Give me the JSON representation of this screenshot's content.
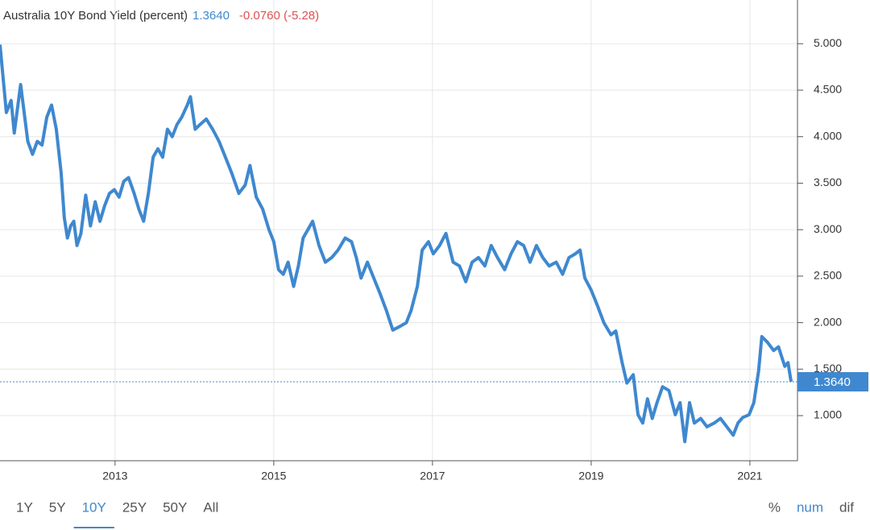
{
  "chart_data": {
    "type": "line",
    "title": "Australia 10Y Bond Yield (percent)",
    "current": {
      "value": 1.364,
      "label": "1.3640"
    },
    "change": "-0.0760 (-5.28)",
    "color": "#3f88cf",
    "x": [
      2011.55,
      2011.63,
      2011.69,
      2011.73,
      2011.81,
      2011.9,
      2011.96,
      2012.02,
      2012.08,
      2012.14,
      2012.2,
      2012.26,
      2012.32,
      2012.36,
      2012.4,
      2012.44,
      2012.48,
      2012.52,
      2012.57,
      2012.63,
      2012.69,
      2012.75,
      2012.81,
      2012.87,
      2012.93,
      2012.99,
      2013.05,
      2013.11,
      2013.17,
      2013.24,
      2013.3,
      2013.36,
      2013.42,
      2013.48,
      2013.54,
      2013.6,
      2013.66,
      2013.72,
      2013.78,
      2013.84,
      2013.91,
      2013.95,
      2014.01,
      2014.07,
      2014.15,
      2014.23,
      2014.31,
      2014.39,
      2014.47,
      2014.56,
      2014.64,
      2014.7,
      2014.78,
      2014.86,
      2014.94,
      2015.0,
      2015.06,
      2015.12,
      2015.18,
      2015.25,
      2015.31,
      2015.37,
      2015.43,
      2015.49,
      2015.57,
      2015.65,
      2015.73,
      2015.81,
      2015.9,
      2015.98,
      2016.04,
      2016.1,
      2016.18,
      2016.26,
      2016.34,
      2016.42,
      2016.5,
      2016.59,
      2016.67,
      2016.73,
      2016.81,
      2016.87,
      2016.95,
      2017.01,
      2017.09,
      2017.17,
      2017.26,
      2017.34,
      2017.42,
      2017.5,
      2017.58,
      2017.66,
      2017.74,
      2017.82,
      2017.91,
      2017.99,
      2018.07,
      2018.15,
      2018.23,
      2018.31,
      2018.39,
      2018.47,
      2018.56,
      2018.64,
      2018.72,
      2018.8,
      2018.86,
      2018.92,
      2019.0,
      2019.08,
      2019.16,
      2019.25,
      2019.31,
      2019.39,
      2019.45,
      2019.53,
      2019.59,
      2019.65,
      2019.71,
      2019.77,
      2019.83,
      2019.9,
      2019.98,
      2020.06,
      2020.12,
      2020.18,
      2020.24,
      2020.3,
      2020.38,
      2020.46,
      2020.55,
      2020.63,
      2020.71,
      2020.79,
      2020.85,
      2020.91,
      2020.99,
      2021.05,
      2021.11,
      2021.15,
      2021.22,
      2021.3,
      2021.36,
      2021.44,
      2021.48,
      2021.52
    ],
    "values": [
      4.99,
      4.26,
      4.39,
      4.04,
      4.56,
      3.95,
      3.81,
      3.95,
      3.91,
      4.21,
      4.34,
      4.08,
      3.61,
      3.13,
      2.91,
      3.04,
      3.09,
      2.83,
      2.96,
      3.37,
      3.04,
      3.3,
      3.09,
      3.26,
      3.39,
      3.43,
      3.35,
      3.52,
      3.56,
      3.39,
      3.22,
      3.09,
      3.39,
      3.78,
      3.87,
      3.78,
      4.08,
      4.0,
      4.13,
      4.21,
      4.34,
      4.43,
      4.08,
      4.13,
      4.19,
      4.08,
      3.95,
      3.78,
      3.61,
      3.39,
      3.48,
      3.69,
      3.35,
      3.22,
      3.0,
      2.87,
      2.57,
      2.52,
      2.65,
      2.39,
      2.61,
      2.91,
      3.0,
      3.09,
      2.83,
      2.65,
      2.7,
      2.78,
      2.91,
      2.87,
      2.7,
      2.48,
      2.65,
      2.48,
      2.31,
      2.13,
      1.92,
      1.96,
      2.0,
      2.13,
      2.39,
      2.78,
      2.87,
      2.74,
      2.83,
      2.96,
      2.65,
      2.61,
      2.44,
      2.65,
      2.7,
      2.61,
      2.83,
      2.7,
      2.57,
      2.74,
      2.87,
      2.83,
      2.65,
      2.83,
      2.7,
      2.61,
      2.65,
      2.52,
      2.7,
      2.74,
      2.78,
      2.48,
      2.35,
      2.18,
      2.0,
      1.87,
      1.91,
      1.57,
      1.35,
      1.44,
      1.01,
      0.92,
      1.18,
      0.97,
      1.14,
      1.31,
      1.27,
      1.01,
      1.14,
      0.72,
      1.14,
      0.92,
      0.97,
      0.88,
      0.92,
      0.97,
      0.88,
      0.79,
      0.92,
      0.98,
      1.01,
      1.14,
      1.48,
      1.85,
      1.79,
      1.7,
      1.74,
      1.53,
      1.57,
      1.364
    ],
    "xlim": [
      2011.55,
      2021.6
    ],
    "xticks": [
      2013,
      2015,
      2017,
      2019,
      2021
    ],
    "ylim": [
      0.515,
      5.47
    ],
    "yticks": [
      {
        "value": 1,
        "label": "1.000"
      },
      {
        "value": 1.5,
        "label": "1.500"
      },
      {
        "value": 2,
        "label": "2.000"
      },
      {
        "value": 2.5,
        "label": "2.500"
      },
      {
        "value": 3,
        "label": "3.000"
      },
      {
        "value": 3.5,
        "label": "3.500"
      },
      {
        "value": 4,
        "label": "4.000"
      },
      {
        "value": 4.5,
        "label": "4.500"
      },
      {
        "value": 5,
        "label": "5.000"
      }
    ],
    "grid": true,
    "ranges": [
      "1Y",
      "5Y",
      "10Y",
      "25Y",
      "50Y",
      "All"
    ],
    "selected_range": 2,
    "modes": [
      "%",
      "num",
      "dif"
    ],
    "selected_mode": 1
  }
}
